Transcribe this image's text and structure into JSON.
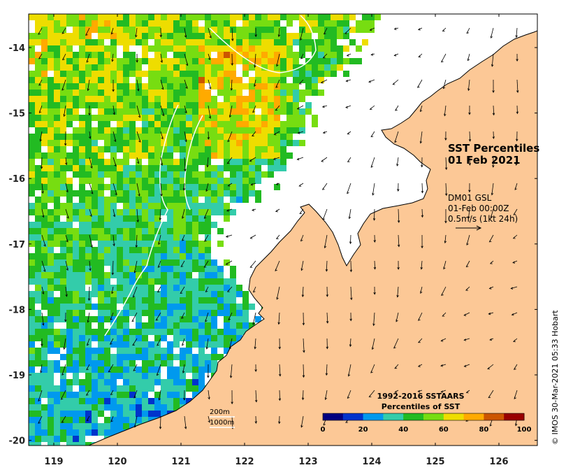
{
  "title": {
    "line1": "SST Percentiles",
    "line2": "01 Feb 2021"
  },
  "current_info": {
    "product": "DM01 GSL",
    "time": "01-Feb 00:00Z",
    "scale": "0.5m/s (1kt 24h)"
  },
  "isobaths": {
    "shallow": "200m",
    "deep": "1000m"
  },
  "legend": {
    "title_line1": "1992-2016 SSTAARS",
    "title_line2": "Percentiles of SST",
    "ticks": [
      "0",
      "20",
      "40",
      "60",
      "80",
      "100"
    ],
    "colors": [
      "#000080",
      "#0033cc",
      "#0099ee",
      "#33ccaa",
      "#22bb22",
      "#77dd11",
      "#eedd00",
      "#ffaa00",
      "#cc5500",
      "#990000"
    ]
  },
  "credit": "© IMOS 30-Mar-2021 05:33 Hobart",
  "axes": {
    "lon_labels": [
      "119",
      "120",
      "121",
      "122",
      "123",
      "124",
      "125",
      "126"
    ],
    "lat_labels": [
      "-14",
      "-15",
      "-16",
      "-17",
      "-18",
      "-19",
      "-20"
    ],
    "lon_range": [
      118.6,
      126.8
    ],
    "lat_range": [
      -20.1,
      -13.5
    ]
  },
  "colors": {
    "land": "#fcc896",
    "no_data": "#ffffff",
    "coast": "#000000",
    "isobath": "#ffffff",
    "arrow": "#000000"
  }
}
